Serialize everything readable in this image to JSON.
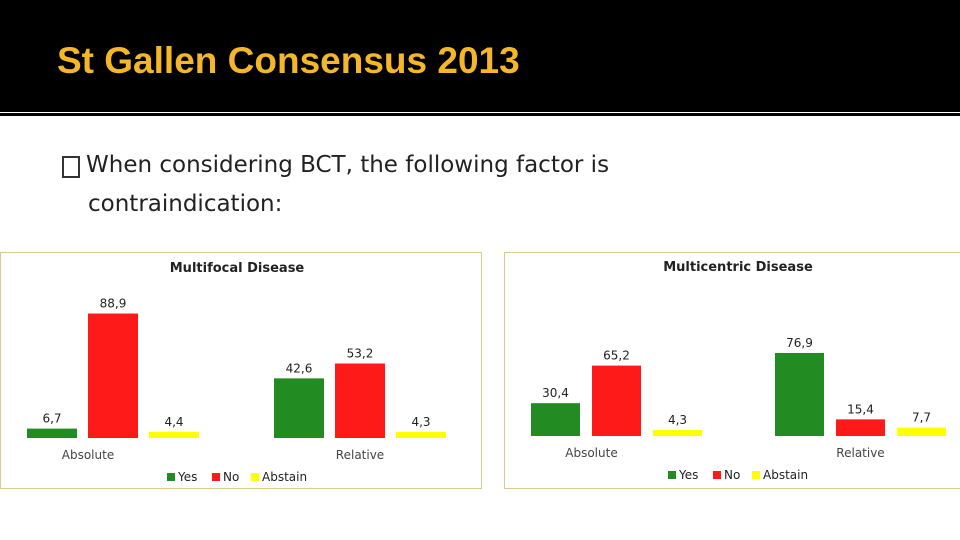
{
  "slide": {
    "title": "St Gallen Consensus 2013",
    "bullet_line1": "When considering BCT, the following factor is",
    "bullet_line2": "contraindication:"
  },
  "colors": {
    "title": "#f5b728",
    "yes": "#228b22",
    "no": "#ff1a1a",
    "abstain": "#ffff00"
  },
  "chart_data": [
    {
      "type": "bar",
      "title": "Multifocal Disease",
      "categories": [
        "Absolute",
        "Relative"
      ],
      "series": [
        {
          "name": "Yes",
          "values": [
            6.7,
            42.6
          ],
          "labels": [
            "6,7",
            "42,6"
          ]
        },
        {
          "name": "No",
          "values": [
            88.9,
            53.2
          ],
          "labels": [
            "88,9",
            "53,2"
          ]
        },
        {
          "name": "Abstain",
          "values": [
            4.4,
            4.3
          ],
          "labels": [
            "4,4",
            "4,3"
          ]
        }
      ],
      "legend": "bottom",
      "grid": false
    },
    {
      "type": "bar",
      "title": "Multicentric Disease",
      "categories": [
        "Absolute",
        "Relative"
      ],
      "series": [
        {
          "name": "Yes",
          "values": [
            30.4,
            76.9
          ],
          "labels": [
            "30,4",
            "76,9"
          ]
        },
        {
          "name": "No",
          "values": [
            65.2,
            15.4
          ],
          "labels": [
            "65,2",
            "15,4"
          ]
        },
        {
          "name": "Abstain",
          "values": [
            4.3,
            7.7
          ],
          "labels": [
            "4,3",
            "7,7"
          ]
        }
      ],
      "legend": "bottom",
      "grid": false
    }
  ]
}
